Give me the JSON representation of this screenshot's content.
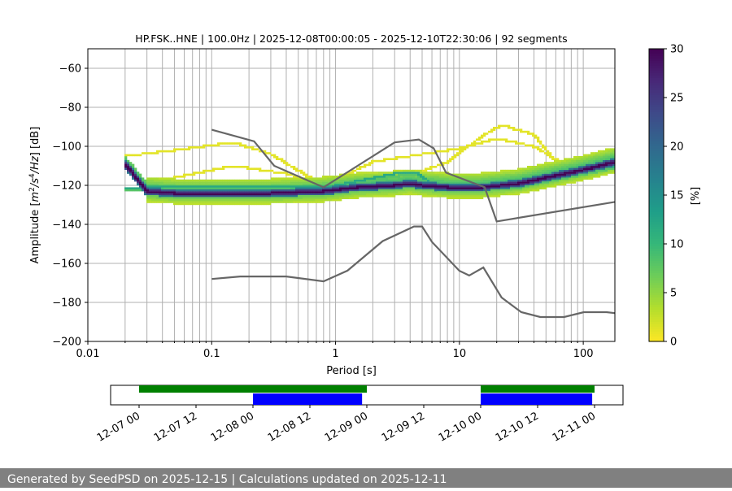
{
  "chart_data": [
    {
      "type": "heatmap",
      "title": "HP.FSK..HNE | 100.0Hz | 2025-12-08T00:00:05 - 2025-12-10T22:30:06 | 92 segments",
      "xlabel": "Period [s]",
      "ylabel": "Amplitude [m^2/s^4/Hz] [dB]",
      "x_scale": "log",
      "xlim": [
        0.01,
        180
      ],
      "ylim": [
        -200,
        -50
      ],
      "x_ticks": [
        "0.01",
        "0.1",
        "1",
        "10",
        "100"
      ],
      "y_ticks": [
        "−60",
        "−80",
        "−100",
        "−120",
        "−140",
        "−160",
        "−180",
        "−200"
      ],
      "grid": true,
      "colorbar": {
        "label": "[%]",
        "range": [
          0,
          30
        ],
        "ticks": [
          "0",
          "5",
          "10",
          "15",
          "20",
          "25",
          "30"
        ],
        "colormap": "viridis_r"
      },
      "mode_curve": {
        "x": [
          0.02,
          0.03,
          0.05,
          0.1,
          0.3,
          0.8,
          1.5,
          3,
          4,
          5,
          8,
          15,
          30,
          60,
          100,
          180
        ],
        "y": [
          -109,
          -123,
          -124,
          -124,
          -124,
          -123,
          -121,
          -120,
          -119,
          -120,
          -121,
          -121,
          -119,
          -115,
          -112,
          -108
        ]
      },
      "band_curves": [
        {
          "x": [
            0.02,
            0.03,
            0.1,
            0.3,
            1,
            3,
            4.5,
            6,
            15,
            30,
            60,
            180
          ],
          "y": [
            -121,
            -121,
            -120,
            -120,
            -120,
            -114,
            -113,
            -119,
            -121,
            -120,
            -116,
            -110
          ]
        },
        {
          "x": [
            0.02,
            0.05,
            0.15,
            0.3,
            0.8,
            2,
            5,
            10,
            20,
            40,
            100,
            180
          ],
          "y": [
            -105,
            -102,
            -98,
            -104,
            -120,
            -108,
            -104,
            -101,
            -96,
            -100,
            -115,
            -107
          ]
        },
        {
          "x": [
            0.05,
            0.15,
            0.4,
            1,
            3,
            8,
            15,
            22,
            40,
            70
          ],
          "y": [
            -116,
            -110,
            -114,
            -122,
            -118,
            -108,
            -95,
            -89,
            -94,
            -113
          ]
        }
      ],
      "noise_models": [
        {
          "x": [
            0.1,
            0.22,
            0.32,
            0.8,
            3,
            4.7,
            6.2,
            7.8,
            16,
            20,
            180
          ],
          "y": [
            -91.5,
            -97.4,
            -110,
            -121,
            -98,
            -96.5,
            -101,
            -113.5,
            -121,
            -138.5,
            -128.5
          ]
        },
        {
          "x": [
            0.1,
            0.17,
            0.4,
            0.8,
            1.25,
            2.4,
            4.3,
            5,
            6,
            10,
            12,
            15.6,
            21.9,
            31.6,
            45,
            70,
            101,
            154,
            180
          ],
          "y": [
            -168,
            -166.7,
            -166.7,
            -169.2,
            -163.7,
            -148.6,
            -141.1,
            -141.1,
            -149,
            -163.8,
            -166.2,
            -162.1,
            -177.5,
            -185,
            -187.5,
            -187.5,
            -185,
            -185,
            -185.5
          ]
        }
      ]
    },
    {
      "type": "timeline",
      "x_ticks": [
        "12-07 00",
        "12-07 12",
        "12-08 00",
        "12-08 12",
        "12-09 00",
        "12-09 12",
        "12-10 00",
        "12-10 12",
        "12-11 00"
      ],
      "x_range": [
        "2025-12-06 18:00",
        "2025-12-11 06:00"
      ],
      "available_data": {
        "color": "#008000",
        "intervals": [
          [
            "2025-12-07 00:00",
            "2025-12-09 00:00"
          ],
          [
            "2025-12-10 00:00",
            "2025-12-11 00:00"
          ]
        ]
      },
      "psd_segments": {
        "color": "#0000ff",
        "intervals": [
          [
            "2025-12-08 00:00",
            "2025-12-08 23:00"
          ],
          [
            "2025-12-10 00:00",
            "2025-12-10 23:30"
          ]
        ]
      }
    }
  ],
  "footer": {
    "text": "Generated by SeedPSD on 2025-12-15 | Calculations updated on 2025-12-11"
  }
}
